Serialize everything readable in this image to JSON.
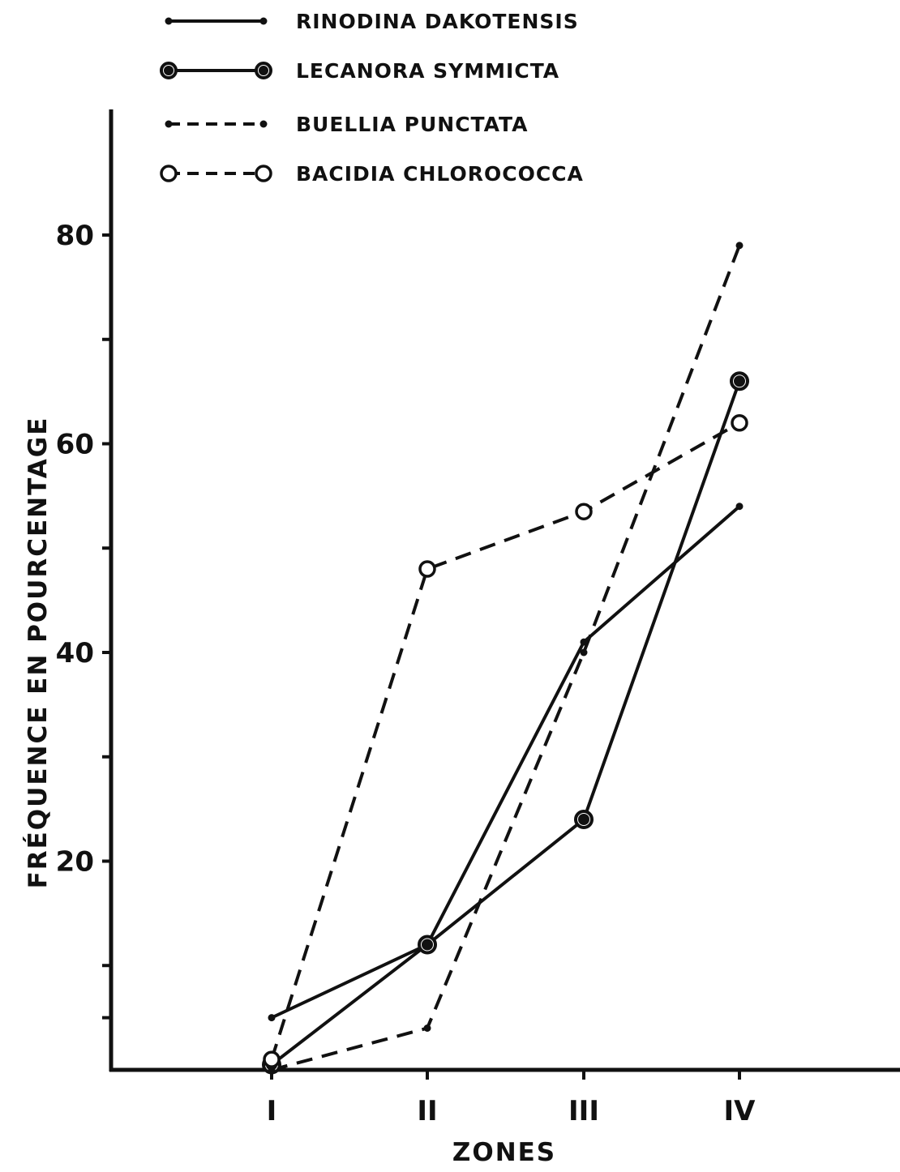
{
  "chart_data": {
    "type": "line",
    "categories": [
      "I",
      "II",
      "III",
      "IV"
    ],
    "series": [
      {
        "name": "RINODINA DAKOTENSIS",
        "values": [
          5,
          12,
          41,
          54
        ],
        "line_style": "solid",
        "marker": "small-dot",
        "color": "#111111"
      },
      {
        "name": "LECANORA SYMMICTA",
        "values": [
          0.5,
          12,
          24,
          66
        ],
        "line_style": "solid",
        "marker": "large-filled-circle",
        "color": "#111111"
      },
      {
        "name": "BUELLIA PUNCTATA",
        "values": [
          0,
          4,
          40,
          79
        ],
        "line_style": "dashed",
        "marker": "small-dot",
        "color": "#111111"
      },
      {
        "name": "BACIDIA CHLOROCOCCA",
        "values": [
          1,
          48,
          53.5,
          62
        ],
        "line_style": "dashed",
        "marker": "open-circle",
        "color": "#111111"
      }
    ],
    "xlabel": "ZONES",
    "ylabel": "FRÉQUENCE EN POURCENTAGE",
    "ylim": [
      0,
      80
    ],
    "yticks_labeled": [
      20,
      40,
      60,
      80
    ],
    "yticks_minor": [
      5,
      10,
      30,
      50,
      70
    ],
    "grid": false,
    "legend_position": "top-left"
  }
}
